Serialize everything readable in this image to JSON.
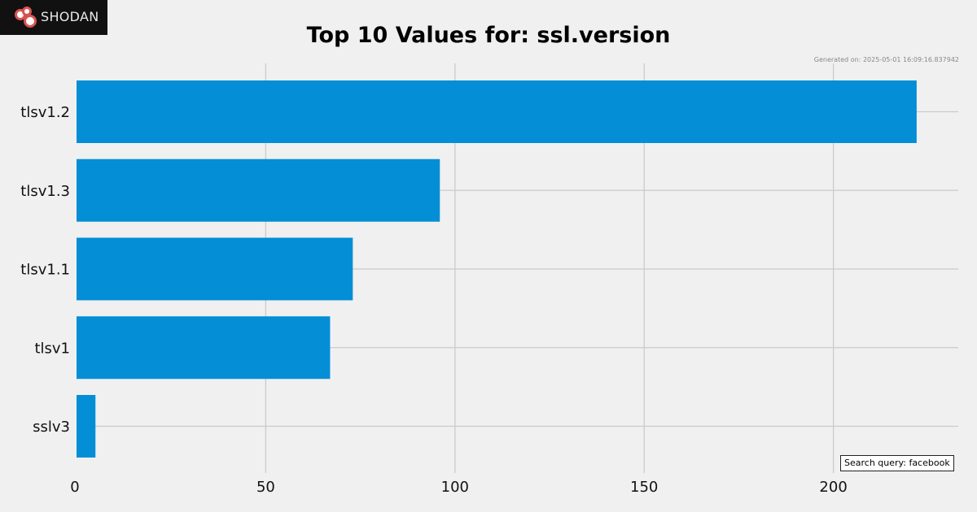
{
  "brand": {
    "name": "SHODAN"
  },
  "generated_text": "Generated on: 2025-05-01 16:09:16.837942",
  "query_text": "Search query: facebook",
  "colors": {
    "bar": "#038ed6",
    "grid": "#cbcbcb",
    "background": "#f0f0f0",
    "logo_bg": "#111111"
  },
  "chart_data": {
    "type": "bar",
    "orientation": "horizontal",
    "title": "Top 10 Values for: ssl.version",
    "xlabel": "",
    "ylabel": "",
    "categories": [
      "tlsv1.2",
      "tlsv1.3",
      "tlsv1.1",
      "tlsv1",
      "sslv3"
    ],
    "values": [
      222,
      96,
      73,
      67,
      5
    ],
    "xlim": [
      0,
      233
    ],
    "xticks": [
      0,
      50,
      100,
      150,
      200
    ],
    "grid": true
  }
}
